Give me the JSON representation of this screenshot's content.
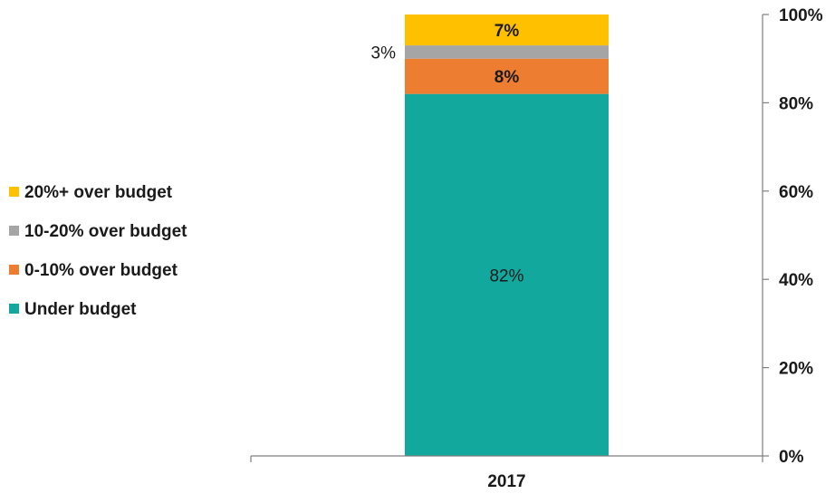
{
  "chart_data": {
    "type": "bar",
    "stacked": true,
    "categories": [
      "2017"
    ],
    "series": [
      {
        "name": "Under budget",
        "values": [
          82
        ],
        "label": "82%",
        "color": "#13a89e"
      },
      {
        "name": "0-10% over budget",
        "values": [
          8
        ],
        "label": "8%",
        "color": "#ed7d31"
      },
      {
        "name": "10-20% over budget",
        "values": [
          3
        ],
        "label": "3%",
        "color": "#a5a5a5"
      },
      {
        "name": "20%+ over budget",
        "values": [
          7
        ],
        "label": "7%",
        "color": "#ffc000"
      }
    ],
    "ylim": [
      0,
      100
    ],
    "yticks": [
      "0%",
      "20%",
      "40%",
      "60%",
      "80%",
      "100%"
    ],
    "y_axis_side": "right",
    "grid": false,
    "legend_position": "left",
    "legend_order": [
      "20%+ over budget",
      "10-20% over budget",
      "0-10% over budget",
      "Under budget"
    ],
    "title": "",
    "xlabel": "",
    "ylabel": ""
  }
}
